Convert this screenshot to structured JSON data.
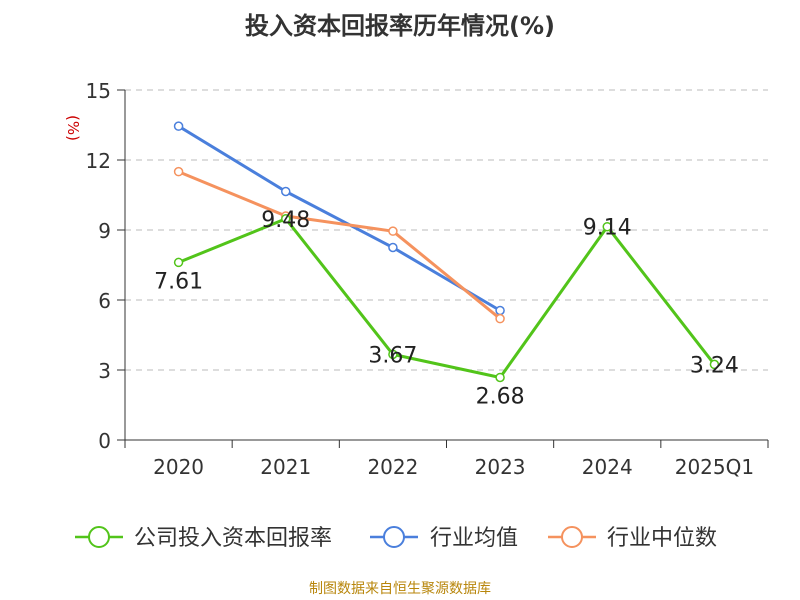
{
  "title": "投入资本回报率历年情况(%)",
  "source": "制图数据来自恒生聚源数据库",
  "chart_data": {
    "type": "line",
    "title": "投入资本回报率历年情况(%)",
    "ylabel": "(%)",
    "xlabel": "",
    "ylim": [
      0,
      15
    ],
    "yticks": [
      0,
      3,
      6,
      9,
      12,
      15
    ],
    "categories": [
      "2020",
      "2021",
      "2022",
      "2023",
      "2024",
      "2025Q1"
    ],
    "grid": true,
    "legend_position": "bottom",
    "series": [
      {
        "name": "公司投入资本回报率",
        "color": "#52c41a",
        "values": [
          7.61,
          9.48,
          3.67,
          2.68,
          9.14,
          3.24
        ],
        "show_labels": true
      },
      {
        "name": "行业均值",
        "color": "#4a7fdc",
        "values": [
          13.45,
          10.65,
          8.25,
          5.55,
          null,
          null
        ],
        "show_labels": false
      },
      {
        "name": "行业中位数",
        "color": "#f5925e",
        "values": [
          11.5,
          9.6,
          8.95,
          5.2,
          null,
          null
        ],
        "show_labels": false
      }
    ]
  }
}
